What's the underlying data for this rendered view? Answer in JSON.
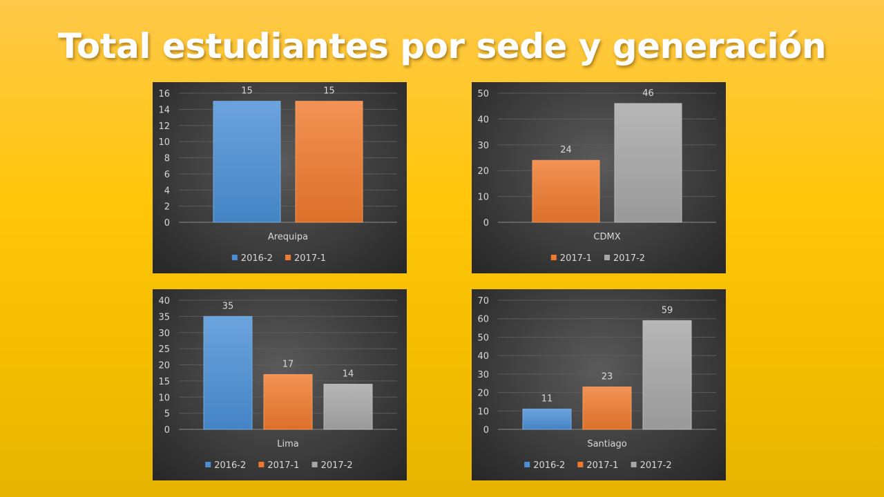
{
  "title": "Total estudiantes por sede y generación",
  "colors": {
    "2016-2": "#4a8fd6",
    "2017-1": "#ef7a2e",
    "2017-2": "#a6a6a6"
  },
  "chart_data": [
    {
      "type": "bar",
      "categories": [
        "Arequipa"
      ],
      "series": [
        {
          "name": "2016-2",
          "values": [
            15
          ]
        },
        {
          "name": "2017-1",
          "values": [
            15
          ]
        }
      ],
      "ylim": [
        0,
        16
      ],
      "yticks": [
        0,
        2,
        4,
        6,
        8,
        10,
        12,
        14,
        16
      ],
      "data_labels": true,
      "grid": true,
      "legend": "bottom"
    },
    {
      "type": "bar",
      "categories": [
        "CDMX"
      ],
      "series": [
        {
          "name": "2017-1",
          "values": [
            24
          ]
        },
        {
          "name": "2017-2",
          "values": [
            46
          ]
        }
      ],
      "ylim": [
        0,
        50
      ],
      "yticks": [
        0,
        10,
        20,
        30,
        40,
        50
      ],
      "data_labels": true,
      "grid": true,
      "legend": "bottom"
    },
    {
      "type": "bar",
      "categories": [
        "Lima"
      ],
      "series": [
        {
          "name": "2016-2",
          "values": [
            35
          ]
        },
        {
          "name": "2017-1",
          "values": [
            17
          ]
        },
        {
          "name": "2017-2",
          "values": [
            14
          ]
        }
      ],
      "ylim": [
        0,
        40
      ],
      "yticks": [
        0,
        5,
        10,
        15,
        20,
        25,
        30,
        35,
        40
      ],
      "data_labels": true,
      "grid": true,
      "legend": "bottom"
    },
    {
      "type": "bar",
      "categories": [
        "Santiago"
      ],
      "series": [
        {
          "name": "2016-2",
          "values": [
            11
          ]
        },
        {
          "name": "2017-1",
          "values": [
            23
          ]
        },
        {
          "name": "2017-2",
          "values": [
            59
          ]
        }
      ],
      "ylim": [
        0,
        70
      ],
      "yticks": [
        0,
        10,
        20,
        30,
        40,
        50,
        60,
        70
      ],
      "data_labels": true,
      "grid": true,
      "legend": "bottom"
    }
  ]
}
